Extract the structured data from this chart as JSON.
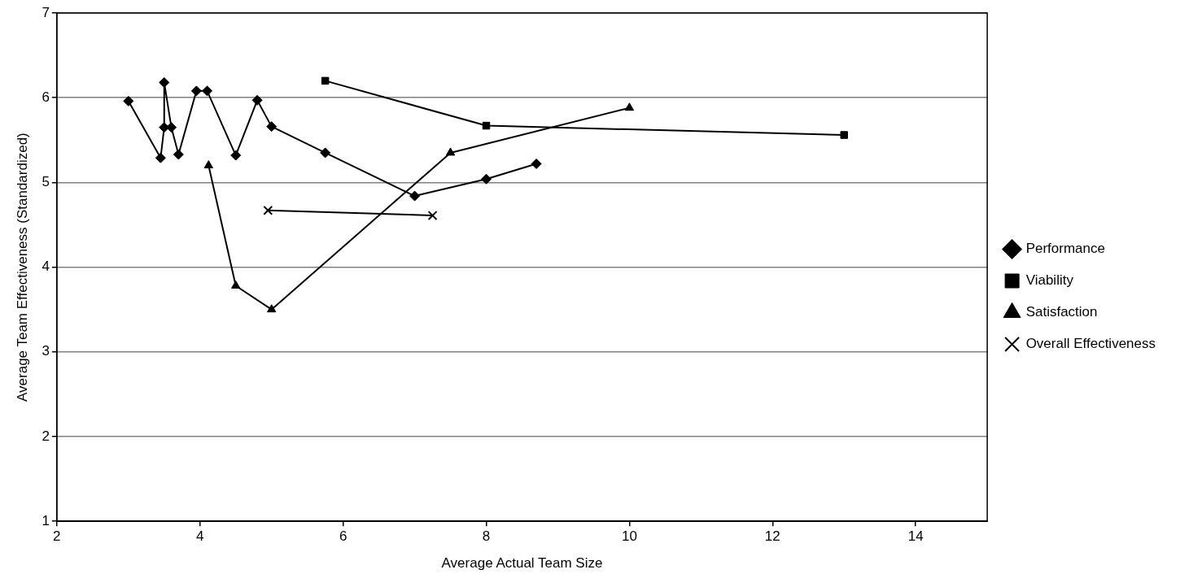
{
  "chart_data": {
    "type": "line",
    "xlabel": "Average Actual Team Size",
    "ylabel": "Average Team Effectiveness (Standardized)",
    "xlim": [
      2,
      15
    ],
    "xticks": [
      2,
      4,
      6,
      8,
      10,
      12,
      14
    ],
    "ylim": [
      1,
      7
    ],
    "yticks": [
      1,
      2,
      3,
      4,
      5,
      6,
      7
    ],
    "grid": "y",
    "legend": "right",
    "series": [
      {
        "name": "Performance",
        "color": "#000000",
        "marker": "diamond",
        "x": [
          3.0,
          3.45,
          3.5,
          3.5,
          3.6,
          3.7,
          3.95,
          4.1,
          4.5,
          4.8,
          5.0,
          5.75,
          7.0,
          8.0,
          8.7
        ],
        "values": [
          5.96,
          5.29,
          5.65,
          6.18,
          5.65,
          5.33,
          6.08,
          6.08,
          5.32,
          5.97,
          5.66,
          5.35,
          4.84,
          5.04,
          5.22
        ]
      },
      {
        "name": "Viability",
        "color": "#000000",
        "marker": "square",
        "x": [
          5.75,
          8.0,
          13.0
        ],
        "values": [
          6.2,
          5.67,
          5.56
        ]
      },
      {
        "name": "Satisfaction",
        "color": "#000000",
        "marker": "triangle",
        "x": [
          4.12,
          4.5,
          5.0,
          7.5,
          10.0
        ],
        "values": [
          5.2,
          3.78,
          3.5,
          5.35,
          5.88
        ]
      },
      {
        "name": "Overall Effectiveness",
        "color": "#000000",
        "marker": "cross",
        "x": [
          4.95,
          7.25
        ],
        "values": [
          4.67,
          4.61
        ]
      }
    ]
  }
}
